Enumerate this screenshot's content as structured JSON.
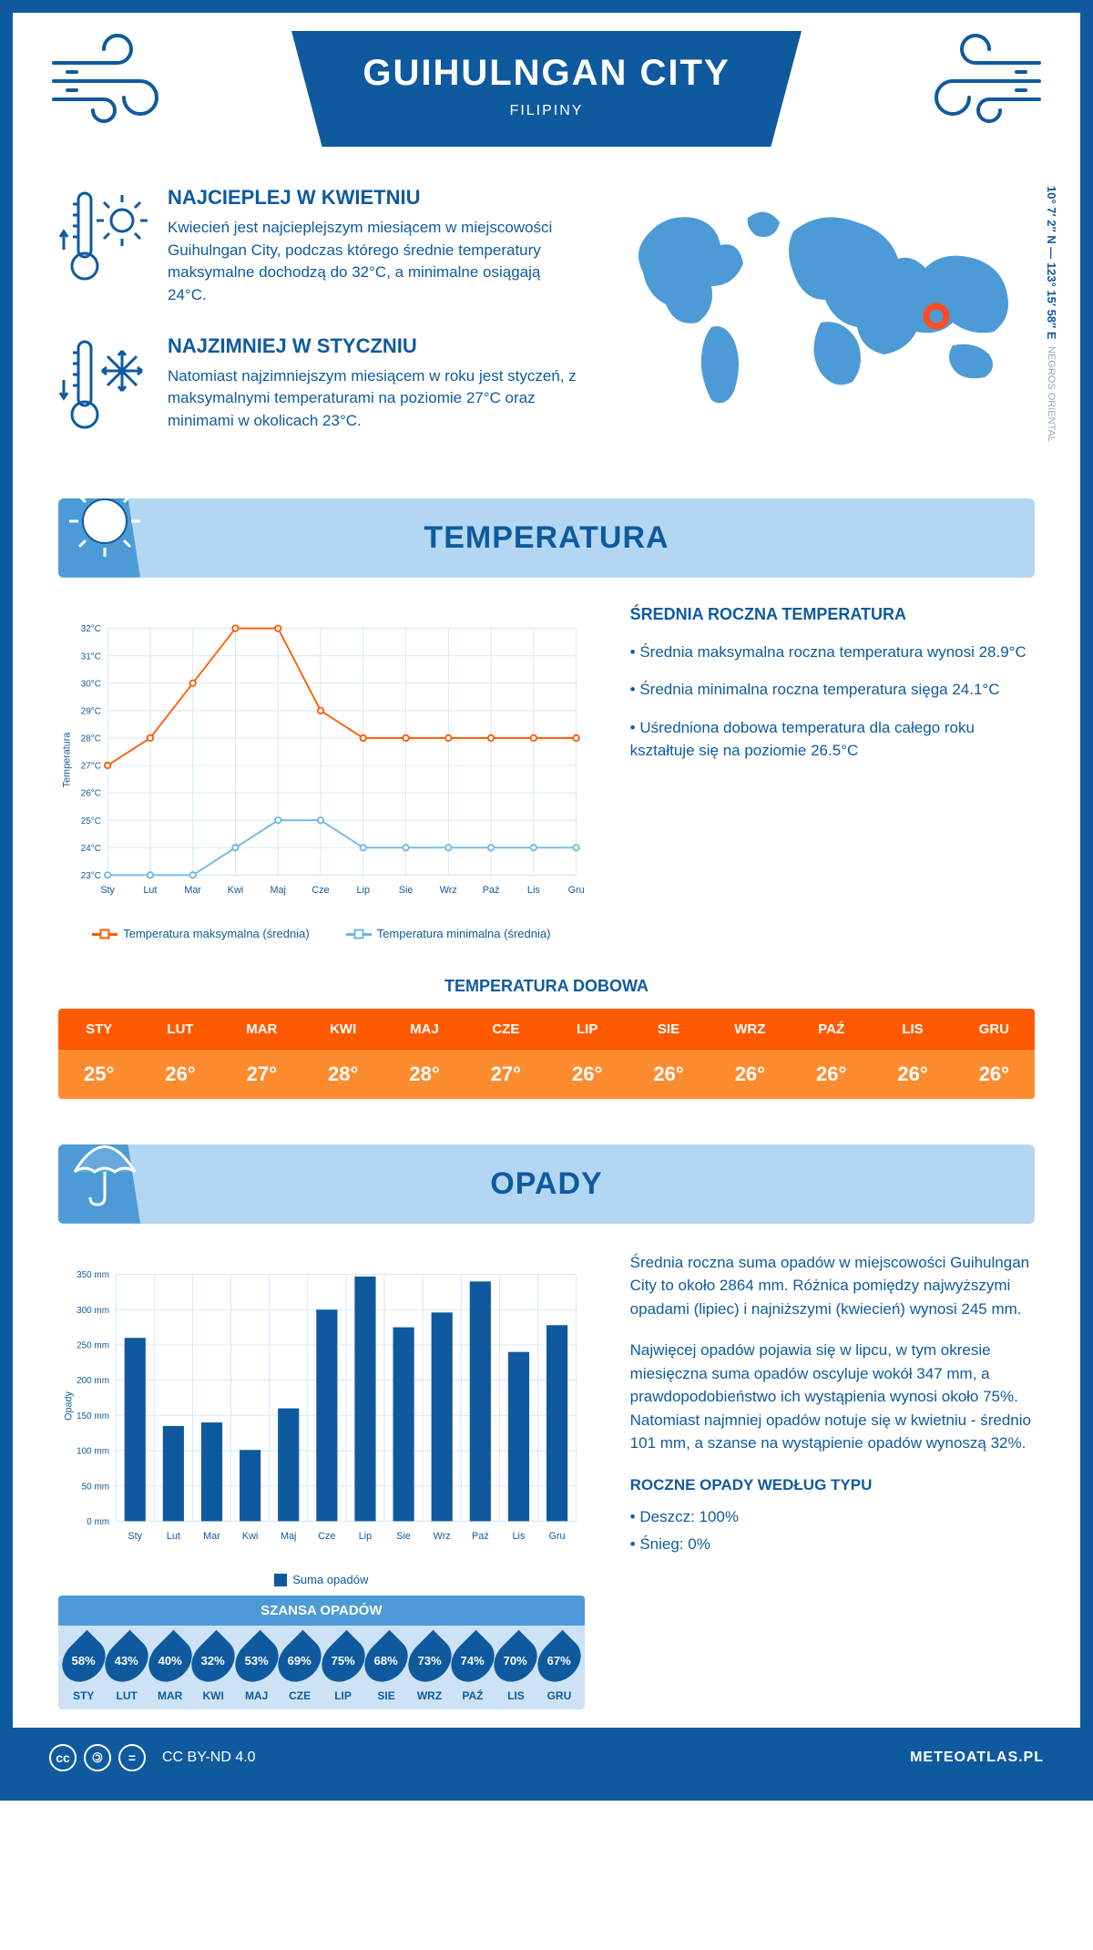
{
  "colors": {
    "primary": "#0f5a9e",
    "light_blue": "#b3d7f2",
    "mid_blue": "#4d9bd6",
    "orange_dark": "#ff5a00",
    "orange_light": "#ff8b2f",
    "line_max": "#ff5a00",
    "line_min": "#6db7e6",
    "grid": "#d0e5f5",
    "map_marker": "#ff4d1f",
    "white": "#ffffff"
  },
  "header": {
    "city": "GUIHULNGAN CITY",
    "country": "FILIPINY"
  },
  "coords": {
    "line": "10° 7′ 2″ N — 123° 15′ 58″ E",
    "region": "NEGROS ORIENTAL"
  },
  "hottest": {
    "title": "NAJCIEPLEJ W KWIETNIU",
    "text": "Kwiecień jest najcieplejszym miesiącem w miejscowości Guihulngan City, podczas którego średnie temperatury maksymalne dochodzą do 32°C, a minimalne osiągają 24°C."
  },
  "coldest": {
    "title": "NAJZIMNIEJ W STYCZNIU",
    "text": "Natomiast najzimniejszym miesiącem w roku jest styczeń, z maksymalnymi temperaturami na poziomie 27°C oraz minimami w okolicach 23°C."
  },
  "temperature": {
    "section_title": "TEMPERATURA",
    "stats_title": "ŚREDNIA ROCZNA TEMPERATURA",
    "stat1": "• Średnia maksymalna roczna temperatura wynosi 28.9°C",
    "stat2": "• Średnia minimalna roczna temperatura sięga 24.1°C",
    "stat3": "• Uśredniona dobowa temperatura dla całego roku kształtuje się na poziomie 26.5°C",
    "chart": {
      "type": "line",
      "months": [
        "Sty",
        "Lut",
        "Mar",
        "Kwi",
        "Maj",
        "Cze",
        "Lip",
        "Sie",
        "Wrz",
        "Paź",
        "Lis",
        "Gru"
      ],
      "ylabel": "Temperatura",
      "ylim": [
        23,
        32
      ],
      "yticks": [
        "23°C",
        "24°C",
        "25°C",
        "26°C",
        "27°C",
        "28°C",
        "29°C",
        "30°C",
        "31°C",
        "32°C"
      ],
      "series": {
        "max": {
          "label": "Temperatura maksymalna (średnia)",
          "color": "#ff5a00",
          "values": [
            27,
            28,
            30,
            32,
            32,
            29,
            28,
            28,
            28,
            28,
            28,
            28
          ]
        },
        "min": {
          "label": "Temperatura minimalna (średnia)",
          "color": "#6db7e6",
          "values": [
            23,
            23,
            23,
            24,
            25,
            25,
            24,
            24,
            24,
            24,
            24,
            24
          ]
        }
      },
      "grid_color": "#d0e5f5",
      "line_width": 2,
      "marker": "circle",
      "marker_size": 5
    },
    "daily": {
      "title": "TEMPERATURA DOBOWA",
      "months": [
        "STY",
        "LUT",
        "MAR",
        "KWI",
        "MAJ",
        "CZE",
        "LIP",
        "SIE",
        "WRZ",
        "PAŹ",
        "LIS",
        "GRU"
      ],
      "values": [
        "25°",
        "26°",
        "27°",
        "28°",
        "28°",
        "27°",
        "26°",
        "26°",
        "26°",
        "26°",
        "26°",
        "26°"
      ]
    }
  },
  "precip": {
    "section_title": "OPADY",
    "chart": {
      "type": "bar",
      "months": [
        "Sty",
        "Lut",
        "Mar",
        "Kwi",
        "Maj",
        "Cze",
        "Lip",
        "Sie",
        "Wrz",
        "Paź",
        "Lis",
        "Gru"
      ],
      "ylabel": "Opady",
      "ylim": [
        0,
        350
      ],
      "ytick_step": 50,
      "yticks": [
        "0 mm",
        "50 mm",
        "100 mm",
        "150 mm",
        "200 mm",
        "250 mm",
        "300 mm",
        "350 mm"
      ],
      "values": [
        260,
        135,
        140,
        101,
        160,
        300,
        347,
        275,
        296,
        340,
        240,
        278
      ],
      "bar_color": "#0f5a9e",
      "grid_color": "#d0e5f5",
      "bar_width": 0.55,
      "legend_label": "Suma opadów"
    },
    "para1": "Średnia roczna suma opadów w miejscowości Guihulngan City to około 2864 mm. Różnica pomiędzy najwyższymi opadami (lipiec) i najniższymi (kwiecień) wynosi 245 mm.",
    "para2": "Najwięcej opadów pojawia się w lipcu, w tym okresie miesięczna suma opadów oscyluje wokół 347 mm, a prawdopodobieństwo ich wystąpienia wynosi około 75%. Natomiast najmniej opadów notuje się w kwietniu - średnio 101 mm, a szanse na wystąpienie opadów wynoszą 32%.",
    "by_type_title": "ROCZNE OPADY WEDŁUG TYPU",
    "rain": "• Deszcz: 100%",
    "snow": "• Śnieg: 0%",
    "chance": {
      "title": "SZANSA OPADÓW",
      "months": [
        "STY",
        "LUT",
        "MAR",
        "KWI",
        "MAJ",
        "CZE",
        "LIP",
        "SIE",
        "WRZ",
        "PAŹ",
        "LIS",
        "GRU"
      ],
      "values": [
        "58%",
        "43%",
        "40%",
        "32%",
        "53%",
        "69%",
        "75%",
        "68%",
        "73%",
        "74%",
        "70%",
        "67%"
      ]
    }
  },
  "footer": {
    "license": "CC BY-ND 4.0",
    "site": "METEOATLAS.PL"
  }
}
